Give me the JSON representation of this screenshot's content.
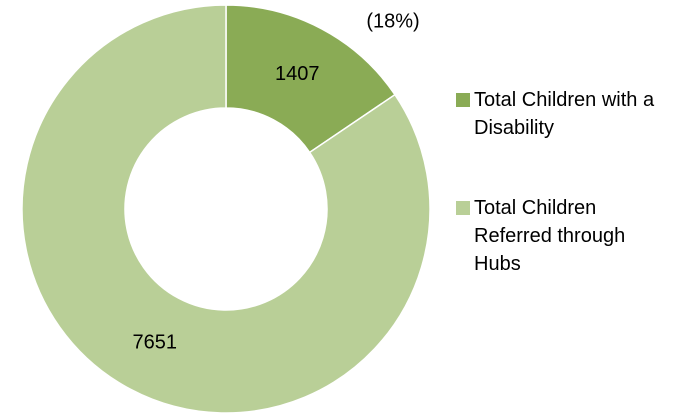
{
  "chart_data": {
    "type": "donut",
    "categories": [
      "Total Children with a Disability",
      "Total Children Referred through Hubs"
    ],
    "values": [
      1407,
      7651
    ],
    "colors": [
      "#8aab55",
      "#b9cf97"
    ],
    "annotation": "(18%)"
  }
}
